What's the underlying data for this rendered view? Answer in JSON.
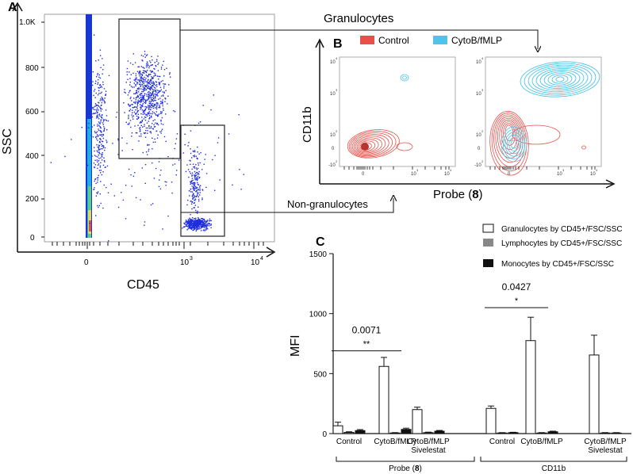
{
  "panel_labels": {
    "a": "A",
    "b": "B",
    "c": "C"
  },
  "panel_a": {
    "xlabel": "CD45",
    "ylabel": "SSC",
    "y_ticks": [
      "1.0K",
      "800",
      "600",
      "400",
      "200",
      "0"
    ],
    "x_ticks": [
      "0",
      "10",
      "3",
      "10",
      "4"
    ],
    "granulocytes_label": "Granulocytes",
    "non_granulocytes_label": "Non-granulocytes"
  },
  "panel_b": {
    "legend": [
      {
        "name": "Control",
        "color": "#e8514a"
      },
      {
        "name": "CytoB/fMLP",
        "color": "#4fc3e8"
      }
    ],
    "ylabel": "CD11b",
    "xlabel_text": "Probe (",
    "xlabel_bold": "8",
    "xlabel_close": ")",
    "tick_labels": [
      "10",
      "4",
      "10",
      "3",
      "10",
      "2",
      "0",
      "-10",
      "2",
      "0",
      "10",
      "3",
      "10",
      "4"
    ]
  },
  "chart_data": {
    "type": "bar",
    "title": "",
    "ylabel": "MFI",
    "xlabel": "",
    "ylim": [
      0,
      1500
    ],
    "yticks": [
      "0",
      "500",
      "1000",
      "1500"
    ],
    "groups": [
      {
        "name": "Probe (8)",
        "name_text": "Probe (",
        "name_bold": "8",
        "name_close": ")",
        "categories": [
          "Control",
          "CytoB/fMLP",
          "CytoB/fMLP Sivelestat"
        ]
      },
      {
        "name": "CD11b",
        "categories": [
          "Control",
          "CytoB/fMLP",
          "CytoB/fMLP Sivelestat"
        ]
      }
    ],
    "category_labels": [
      [
        "Control"
      ],
      [
        "CytoB/fMLP"
      ],
      [
        "CytoB/fMLP",
        "Sivelestat"
      ],
      [
        "Control"
      ],
      [
        "CytoB/fMLP"
      ],
      [
        "CytoB/fMLP",
        "Sivelestat"
      ]
    ],
    "series": [
      {
        "name": "Granulocytes by CD45+/FSC/SSC",
        "color": "#ffffff",
        "values": [
          65,
          560,
          200,
          210,
          775,
          655
        ],
        "errors": [
          30,
          75,
          20,
          20,
          195,
          165
        ]
      },
      {
        "name": "Lymphocytes by CD45+/FSC/SSC",
        "color": "#888888",
        "values": [
          10,
          5,
          8,
          5,
          5,
          5
        ],
        "errors": [
          5,
          3,
          4,
          3,
          3,
          3
        ]
      },
      {
        "name": "Monocytes by CD45+/FSC/SSC",
        "color": "#111111",
        "values": [
          25,
          35,
          20,
          8,
          15,
          5
        ],
        "errors": [
          8,
          10,
          6,
          3,
          5,
          3
        ]
      }
    ],
    "annotations": [
      {
        "p": "0.0071",
        "stars": "**",
        "from_bar": 0,
        "to_bar": 1,
        "y": 690
      },
      {
        "p": "0.0427",
        "stars": "*",
        "from_bar": 3,
        "to_bar": 4,
        "y": 1050
      }
    ]
  }
}
